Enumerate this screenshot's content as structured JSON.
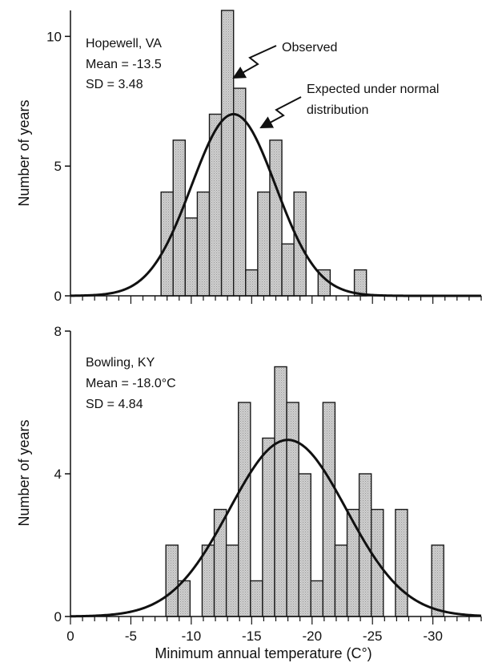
{
  "chart_data": [
    {
      "type": "bar",
      "panel": "top",
      "annotations": {
        "location": "Hopewell, VA",
        "mean_text": "Mean = -13.5",
        "sd_text": "SD = 3.48",
        "observed_label": "Observed",
        "expected_label_line1": "Expected under normal",
        "expected_label_line2": "distribution"
      },
      "ylabel": "Number of years",
      "ylim": [
        0,
        11
      ],
      "yticks": [
        0,
        5,
        10
      ],
      "xlim": [
        0,
        -34
      ],
      "bin_width": 1,
      "bins": [
        {
          "x": -7.5,
          "count": 4
        },
        {
          "x": -8.5,
          "count": 6
        },
        {
          "x": -9.5,
          "count": 3
        },
        {
          "x": -10.5,
          "count": 4
        },
        {
          "x": -11.5,
          "count": 7
        },
        {
          "x": -12.5,
          "count": 11
        },
        {
          "x": -13.5,
          "count": 8
        },
        {
          "x": -14.5,
          "count": 1
        },
        {
          "x": -15.5,
          "count": 4
        },
        {
          "x": -16.5,
          "count": 6
        },
        {
          "x": -17.5,
          "count": 2
        },
        {
          "x": -18.5,
          "count": 4
        },
        {
          "x": -20.5,
          "count": 1
        },
        {
          "x": -23.5,
          "count": 1
        }
      ],
      "normal_curve": {
        "mean": -13.5,
        "sd": 3.48,
        "peak": 7
      }
    },
    {
      "type": "bar",
      "panel": "bottom",
      "annotations": {
        "location": "Bowling, KY",
        "mean_text": "Mean = -18.0°C",
        "sd_text": "SD = 4.84"
      },
      "ylabel": "Number of years",
      "xlabel": "Minimum annual temperature (C°)",
      "ylim": [
        0,
        8
      ],
      "yticks": [
        0,
        4,
        8
      ],
      "xlim": [
        0,
        -34
      ],
      "xticks": [
        0,
        -5,
        -10,
        -15,
        -20,
        -25,
        -30
      ],
      "xtick_labels": [
        "0",
        "-5",
        "-10",
        "-15",
        "-20",
        "-25",
        "-30"
      ],
      "bin_width": 1,
      "bins": [
        {
          "x": -7.9,
          "count": 2
        },
        {
          "x": -8.9,
          "count": 1
        },
        {
          "x": -10.9,
          "count": 2
        },
        {
          "x": -11.9,
          "count": 3
        },
        {
          "x": -12.9,
          "count": 2
        },
        {
          "x": -13.9,
          "count": 6
        },
        {
          "x": -14.9,
          "count": 1
        },
        {
          "x": -15.9,
          "count": 5
        },
        {
          "x": -16.9,
          "count": 7
        },
        {
          "x": -17.9,
          "count": 6
        },
        {
          "x": -18.9,
          "count": 4
        },
        {
          "x": -19.9,
          "count": 1
        },
        {
          "x": -20.9,
          "count": 6
        },
        {
          "x": -21.9,
          "count": 2
        },
        {
          "x": -22.9,
          "count": 3
        },
        {
          "x": -23.9,
          "count": 4
        },
        {
          "x": -24.9,
          "count": 3
        },
        {
          "x": -26.9,
          "count": 3
        },
        {
          "x": -29.9,
          "count": 2
        }
      ],
      "normal_curve": {
        "mean": -18.0,
        "sd": 4.84,
        "peak": 4.95
      }
    }
  ],
  "colors": {
    "bar_fill": "#c4c4c4",
    "bar_stroke": "#1a1a1a",
    "curve": "#111111",
    "axis": "#111111"
  }
}
